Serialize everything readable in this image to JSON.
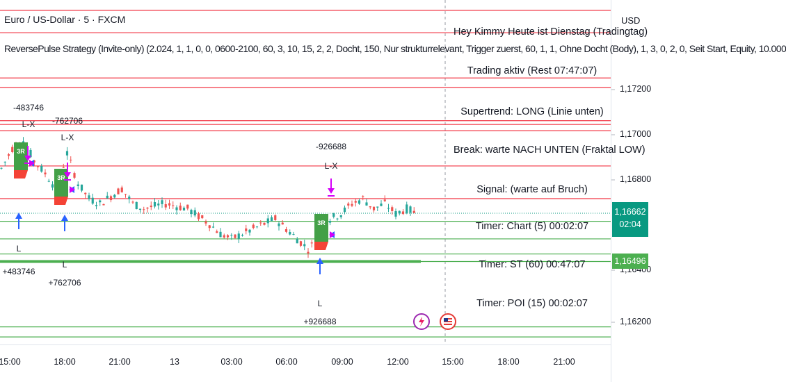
{
  "header": {
    "symbol_title": "Euro / US-Dollar · 5 · FXCM",
    "strategy_line": "ReversePulse Strategy (Invite-only) (2.024, 1, 1, 0, 0, 0600-2100, 60, 3, 10, 15, 2, 2, Docht, 150, Nur strukturrelevant, Trigger zuerst, 60, 1, 1, Ohne Docht (Body), 1, 3, 0, 2, 0, Seit Start, Equity, 10.000",
    "currency": "USD"
  },
  "info_panel": [
    "Hey Kimmy Heute ist Dienstag (Tradingtag)",
    "Trading aktiv (Rest 07:47:07)",
    "Supertrend: LONG (Linie unten)",
    "Break: warte NACH UNTEN (Fraktal LOW)",
    "Signal: (warte auf Bruch)",
    "Timer: Chart (5) 00:02:07",
    "Timer: ST (60) 00:47:07",
    "Timer: POI (15) 00:02:07"
  ],
  "price_badges": {
    "current": "1,16662",
    "countdown": "02:04",
    "level": "1,16496",
    "current_color": "#089981",
    "level_color": "#4caf50"
  },
  "colors": {
    "up": "#26a69a",
    "down": "#ef5350",
    "red_line": "#f23645",
    "green_line": "#4caf50",
    "arrow_up": "#2962ff",
    "arrow_down": "#d500f9",
    "badge_green": "#43a047",
    "badge_red": "#f44336"
  },
  "trade_labels": [
    {
      "top": "-483746",
      "exit": "L-X",
      "entry": "L",
      "bottom": "+483746",
      "badge": "3R"
    },
    {
      "top": "-762706",
      "exit": "L-X",
      "entry": "L",
      "bottom": "+762706",
      "badge": "3R"
    },
    {
      "top": "-926688",
      "exit": "L-X",
      "entry": "L",
      "bottom": "+926688",
      "badge": "3R"
    }
  ],
  "chart_data": {
    "type": "candlestick",
    "x_ticks": [
      "15:00",
      "18:00",
      "21:00",
      "13",
      "03:00",
      "06:00",
      "09:00",
      "12:00",
      "15:00",
      "18:00",
      "21:00"
    ],
    "y_ticks": [
      "1,17200",
      "1,17000",
      "1,16800",
      "1,16400",
      "1,16200"
    ],
    "ylim": [
      1.1614,
      1.1751
    ],
    "last_price": 1.16662,
    "level_price": 1.16496,
    "red_levels": [
      1.17469,
      1.1738,
      1.172,
      1.17162,
      1.1703,
      1.17015,
      1.1699,
      1.1685,
      1.1672
    ],
    "green_levels": [
      1.1663,
      1.1656,
      1.165,
      1.1647,
      1.1621,
      1.1617
    ],
    "close_path": [
      [
        0,
        1.1684
      ],
      [
        3,
        1.1692
      ],
      [
        6,
        1.1695
      ],
      [
        9,
        1.1687
      ],
      [
        12,
        1.1682
      ],
      [
        15,
        1.1676
      ],
      [
        18,
        1.169
      ],
      [
        21,
        1.1678
      ],
      [
        24,
        1.1672
      ],
      [
        27,
        1.167
      ],
      [
        30,
        1.1673
      ],
      [
        33,
        1.1676
      ],
      [
        36,
        1.167
      ],
      [
        39,
        1.1668
      ],
      [
        42,
        1.1669
      ],
      [
        45,
        1.167
      ],
      [
        48,
        1.1669
      ],
      [
        51,
        1.1668
      ],
      [
        54,
        1.1665
      ],
      [
        57,
        1.1662
      ],
      [
        60,
        1.1658
      ],
      [
        63,
        1.1656
      ],
      [
        66,
        1.1658
      ],
      [
        69,
        1.166
      ],
      [
        72,
        1.1662
      ],
      [
        75,
        1.1664
      ],
      [
        78,
        1.166
      ],
      [
        81,
        1.1656
      ],
      [
        84,
        1.1652
      ],
      [
        87,
        1.1656
      ],
      [
        90,
        1.1664
      ],
      [
        93,
        1.1666
      ],
      [
        96,
        1.167
      ],
      [
        99,
        1.1672
      ],
      [
        102,
        1.1668
      ],
      [
        105,
        1.167
      ],
      [
        108,
        1.1666
      ],
      [
        111,
        1.1668
      ],
      [
        114,
        1.1666
      ]
    ]
  }
}
